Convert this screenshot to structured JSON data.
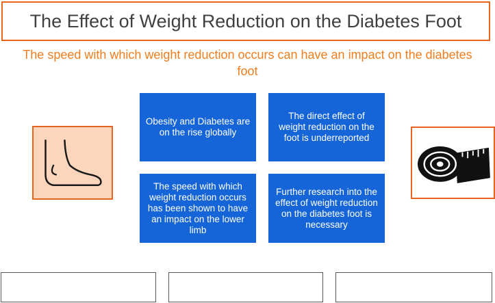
{
  "header": {
    "title": "The Effect of Weight Reduction on the Diabetes Foot",
    "subtitle": "The speed with which weight reduction occurs can have an impact on the diabetes foot"
  },
  "cards": [
    {
      "text": "Obesity and Diabetes are on the rise globally"
    },
    {
      "text": "The direct effect of weight reduction on the foot is underreported"
    },
    {
      "text": "The speed with which weight reduction occurs has been shown to have an impact on the lower limb"
    },
    {
      "text": "Further research into the effect of weight reduction on the diabetes foot is necessary"
    }
  ],
  "icons": {
    "left": "foot-icon",
    "right": "measuring-tape-icon"
  },
  "colors": {
    "accent_orange": "#e8641e",
    "subtitle_orange": "#f07d1e",
    "card_blue": "#1565d8",
    "foot_bg": "#fbd6bd",
    "title_text": "#404040"
  }
}
